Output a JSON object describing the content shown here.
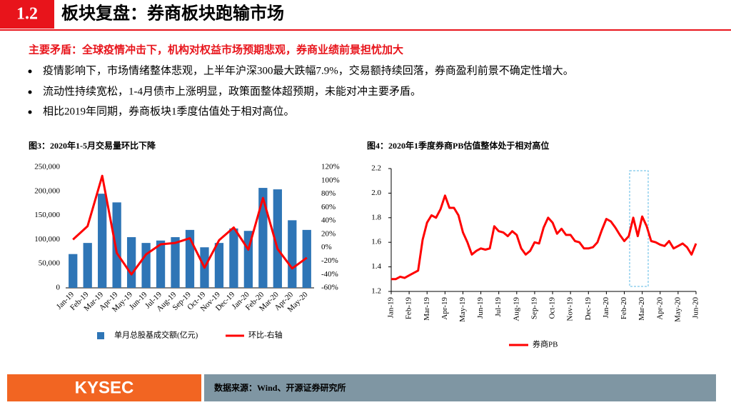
{
  "header": {
    "number": "1.2",
    "title": "板块复盘：券商板块跑输市场"
  },
  "subheadline": "主要矛盾：全球疫情冲击下，机构对权益市场预期悲观，券商业绩前景担忧加大",
  "bullets": [
    "疫情影响下，市场情绪整体悲观，上半年沪深300最大跌幅7.9%，交易额持续回落，券商盈利前景不确定性增大。",
    "流动性持续宽松，1-4月债市上涨明显，政策面整体超预期，未能对冲主要矛盾。",
    "相比2019年同期，券商板块1季度估值处于相对高位。"
  ],
  "chart_data": [
    {
      "type": "bar",
      "title": "图3：2020年1-5月交易量环比下降",
      "categories": [
        "Jan-19",
        "Feb-19",
        "Mar-19",
        "Apr-19",
        "May-19",
        "Jun-19",
        "Jul-19",
        "Aug-19",
        "Sep-19",
        "Oct-19",
        "Nov-19",
        "Dec-19",
        "Jan-20",
        "Feb-20",
        "Mar-20",
        "Apr-20",
        "May-20"
      ],
      "series": [
        {
          "name": "单月总股基成交额(亿元)",
          "type": "bar",
          "color": "#2e75b6",
          "values": [
            70000,
            93000,
            195000,
            177000,
            105000,
            93000,
            98000,
            105000,
            120000,
            84000,
            93000,
            123000,
            118000,
            207000,
            204000,
            140000,
            120000
          ]
        },
        {
          "name": "环比-右轴",
          "type": "line",
          "axis": "y2",
          "color": "#ff0000",
          "values": [
            12,
            32,
            107,
            -8,
            -40,
            -10,
            5,
            7,
            14,
            -30,
            11,
            30,
            -3,
            74,
            -2,
            -31,
            -15
          ]
        }
      ],
      "ylim": [
        0,
        250000
      ],
      "yticks": [
        0,
        {
          "value": 50000,
          "label": "50,000"
        },
        {
          "value": 100000,
          "label": "100,000"
        },
        {
          "value": 150000,
          "label": "150,000"
        },
        {
          "value": 200000,
          "label": "200,000"
        },
        {
          "value": 250000,
          "label": "250,000"
        }
      ],
      "y2lim": [
        -60,
        120
      ],
      "y2ticks": [
        {
          "value": -60,
          "label": "-60%"
        },
        {
          "value": -40,
          "label": "-40%"
        },
        {
          "value": -20,
          "label": "-20%"
        },
        {
          "value": 0,
          "label": "0%"
        },
        {
          "value": 20,
          "label": "20%"
        },
        {
          "value": 40,
          "label": "40%"
        },
        {
          "value": 60,
          "label": "60%"
        },
        {
          "value": 80,
          "label": "80%"
        },
        {
          "value": 100,
          "label": "100%"
        },
        {
          "value": 120,
          "label": "120%"
        }
      ]
    },
    {
      "type": "line",
      "title": "图4：2020年1季度券商PB估值整体处于相对高位",
      "categories": [
        "Jan-19",
        null,
        null,
        null,
        "Feb-19",
        null,
        null,
        null,
        "Mar-19",
        null,
        null,
        null,
        "Apr-19",
        null,
        null,
        null,
        "May-19",
        null,
        null,
        null,
        "Jun-19",
        null,
        null,
        null,
        "Jul-19",
        null,
        null,
        null,
        "Aug-19",
        null,
        null,
        null,
        "Sep-19",
        null,
        null,
        null,
        "Oct-19",
        null,
        null,
        null,
        "Nov-19",
        null,
        null,
        null,
        "Dec-19",
        null,
        null,
        null,
        "Jan-20",
        null,
        null,
        null,
        "Feb-20",
        null,
        null,
        null,
        "Mar-20",
        null,
        null,
        null,
        "Apr-20",
        null,
        null,
        null,
        "May-20",
        null,
        null,
        null,
        "Jun-20"
      ],
      "series": [
        {
          "name": "券商PB",
          "color": "#ff0000",
          "values": [
            1.3,
            1.3,
            1.32,
            1.31,
            1.33,
            1.35,
            1.37,
            1.62,
            1.76,
            1.82,
            1.8,
            1.87,
            1.98,
            1.88,
            1.88,
            1.82,
            1.68,
            1.6,
            1.5,
            1.53,
            1.55,
            1.54,
            1.55,
            1.73,
            1.69,
            1.68,
            1.65,
            1.69,
            1.66,
            1.55,
            1.5,
            1.53,
            1.6,
            1.59,
            1.72,
            1.8,
            1.76,
            1.67,
            1.71,
            1.66,
            1.66,
            1.61,
            1.6,
            1.55,
            1.55,
            1.56,
            1.6,
            1.7,
            1.79,
            1.77,
            1.72,
            1.66,
            1.61,
            1.65,
            1.8,
            1.65,
            1.81,
            1.73,
            1.61,
            1.6,
            1.58,
            1.57,
            1.61,
            1.55,
            1.57,
            1.59,
            1.56,
            1.5,
            1.59
          ]
        }
      ],
      "ylim": [
        1.2,
        2.2
      ],
      "yticks": [
        1.2,
        1.4,
        1.6,
        1.8,
        {
          "value": 2,
          "label": "2.0"
        },
        2.2
      ]
    }
  ],
  "footer": {
    "logo": "KYSEC",
    "source": "数据来源：Wind、开源证券研究所"
  }
}
